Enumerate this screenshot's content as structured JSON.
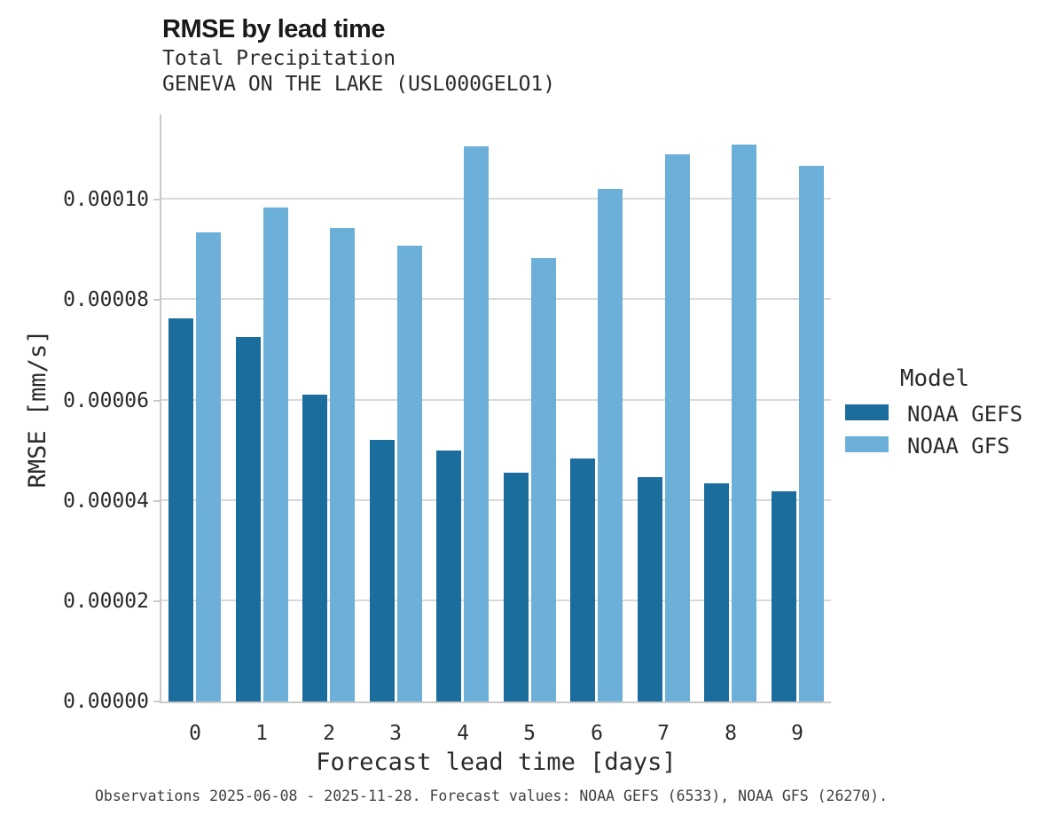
{
  "chart_data": {
    "type": "bar",
    "title": "RMSE by lead time",
    "subtitle": "Total Precipitation",
    "station": "GENEVA ON THE LAKE (USL000GELO1)",
    "xlabel": "Forecast lead time [days]",
    "ylabel": "RMSE [mm/s]",
    "categories": [
      "0",
      "1",
      "2",
      "3",
      "4",
      "5",
      "6",
      "7",
      "8",
      "9"
    ],
    "series": [
      {
        "name": "NOAA GEFS",
        "color": "#1b6d9e",
        "values": [
          7.63e-05,
          7.27e-05,
          6.12e-05,
          5.22e-05,
          5e-05,
          4.56e-05,
          4.85e-05,
          4.47e-05,
          4.35e-05,
          4.19e-05
        ]
      },
      {
        "name": "NOAA GFS",
        "color": "#6cb0d9",
        "values": [
          9.36e-05,
          9.85e-05,
          9.44e-05,
          9.08e-05,
          0.0001107,
          8.84e-05,
          0.0001022,
          0.000109,
          0.0001111,
          0.0001068
        ]
      }
    ],
    "ylim": [
      0,
      0.000117
    ],
    "yticks": {
      "labels": [
        "0.00000",
        "0.00002",
        "0.00004",
        "0.00006",
        "0.00008",
        "0.00010"
      ],
      "values": [
        0,
        2e-05,
        4e-05,
        6e-05,
        8e-05,
        0.0001
      ]
    },
    "grid": "horizontal",
    "legend": {
      "title": "Model",
      "position": "right"
    },
    "caption": "Observations 2025-06-08 - 2025-11-28. Forecast values: NOAA GEFS (6533), NOAA GFS (26270).",
    "colors": {
      "gefs_bar": "#1b6d9e",
      "gfs_bar": "#6cb0d9",
      "gridline": "#d9d9d9",
      "axis_spine": "#c9c9c9"
    }
  }
}
